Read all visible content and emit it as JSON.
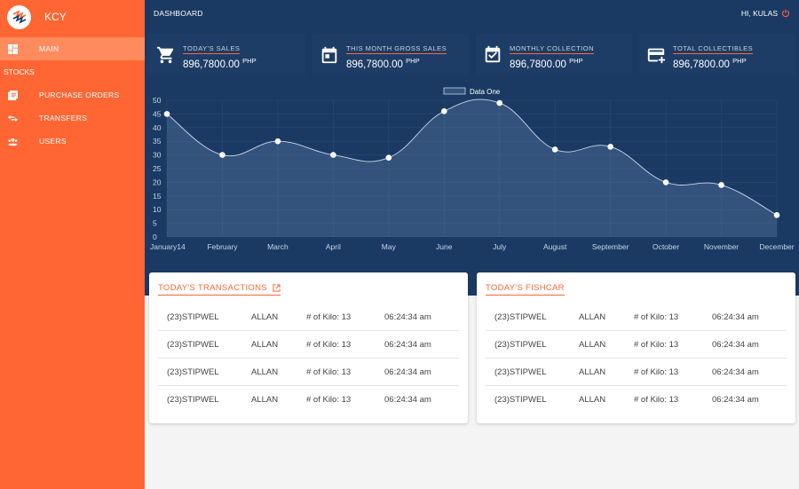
{
  "app": {
    "name": "KCY"
  },
  "sidebar": {
    "main_label": "MAIN",
    "section_label": "STOCKS",
    "items": [
      {
        "label": "PURCHASE ORDERS",
        "icon": "document-icon"
      },
      {
        "label": "TRANSFERS",
        "icon": "transfer-icon"
      },
      {
        "label": "USERS",
        "icon": "users-icon"
      }
    ]
  },
  "header": {
    "title": "DASHBOARD",
    "greeting": "HI, KULAS"
  },
  "stats": [
    {
      "label": "TODAY'S SALES",
      "value": "896,7800.00",
      "unit": "PHP",
      "icon": "cart-icon"
    },
    {
      "label": "THIS MONTH GROSS SALES",
      "value": "896,7800.00",
      "unit": "PHP",
      "icon": "calendar-icon"
    },
    {
      "label": "MONTHLY COLLECTION",
      "value": "896,7800.00",
      "unit": "PHP",
      "icon": "calendar-check-icon"
    },
    {
      "label": "TOTAL COLLECTIBLES",
      "value": "896,7800.00",
      "unit": "PHP",
      "icon": "card-plus-icon"
    }
  ],
  "chart_data": {
    "type": "area",
    "categories": [
      "January14",
      "February",
      "March",
      "April",
      "May",
      "June",
      "July",
      "August",
      "September",
      "October",
      "November",
      "December"
    ],
    "series": [
      {
        "name": "Data One",
        "values": [
          45,
          30,
          35,
          30,
          29,
          46,
          49,
          32,
          33,
          20,
          19,
          8
        ]
      }
    ],
    "ylim": [
      0,
      50
    ],
    "yticks": [
      0,
      5,
      10,
      15,
      20,
      25,
      30,
      35,
      40,
      45,
      50
    ],
    "legend": "top",
    "grid": true
  },
  "transactions": {
    "title": "TODAY'S TRANSACTIONS",
    "rows": [
      {
        "code": "(23)STIPWEL",
        "name": "ALLAN",
        "kilo": "# of Kilo: 13",
        "time": "06:24:34 am"
      },
      {
        "code": "(23)STIPWEL",
        "name": "ALLAN",
        "kilo": "# of Kilo: 13",
        "time": "06:24:34 am"
      },
      {
        "code": "(23)STIPWEL",
        "name": "ALLAN",
        "kilo": "# of Kilo: 13",
        "time": "06:24:34 am"
      },
      {
        "code": "(23)STIPWEL",
        "name": "ALLAN",
        "kilo": "# of Kilo: 13",
        "time": "06:24:34 am"
      }
    ]
  },
  "fishcar": {
    "title": "TODAY'S FISHCAR",
    "rows": [
      {
        "code": "(23)STIPWEL",
        "name": "ALLAN",
        "kilo": "# of Kilo: 13",
        "time": "06:24:34 am"
      },
      {
        "code": "(23)STIPWEL",
        "name": "ALLAN",
        "kilo": "# of Kilo: 13",
        "time": "06:24:34 am"
      },
      {
        "code": "(23)STIPWEL",
        "name": "ALLAN",
        "kilo": "# of Kilo: 13",
        "time": "06:24:34 am"
      },
      {
        "code": "(23)STIPWEL",
        "name": "ALLAN",
        "kilo": "# of Kilo: 13",
        "time": "06:24:34 am"
      }
    ]
  },
  "colors": {
    "accent": "#ff6633",
    "navy": "#1a3a63",
    "card": "#1e3d66"
  }
}
